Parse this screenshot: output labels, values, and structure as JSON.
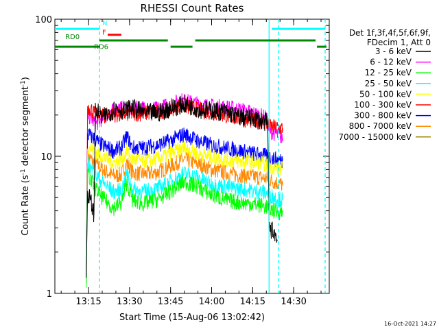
{
  "chart_data": {
    "type": "line",
    "title": "RHESSI Count Rates",
    "xlabel": "Start Time (15-Aug-06 13:02:42)",
    "ylabel": "Count Rate (s",
    "ylabel_sup": "-1",
    "ylabel_mid": " detector segment",
    "ylabel_end": ")",
    "y_scale": "log",
    "ylim": [
      1,
      100
    ],
    "xlim": [
      "13:02:42",
      "14:43:00"
    ],
    "x_ticks": [
      "13:15",
      "13:30",
      "13:45",
      "14:00",
      "14:15",
      "14:30"
    ],
    "y_ticks": [
      "1",
      "10",
      "100"
    ],
    "legend_header": [
      "Det 1f,3f,4f,5f,6f,9f,",
      "FDecim 1, Att 0"
    ],
    "legend_placement": "right",
    "series": [
      {
        "name": "3 - 6 keV",
        "color": "#000000",
        "start": "13:14:10",
        "end": "14:24:00",
        "values": [
          [
            "13:14:10",
            1.3
          ],
          [
            "13:14:40",
            5.5
          ],
          [
            "13:16:00",
            4.5
          ],
          [
            "13:17:00",
            3.8
          ],
          [
            "13:17:30",
            22.0
          ],
          [
            "13:20:00",
            19.0
          ],
          [
            "13:23:00",
            21.0
          ],
          [
            "13:25:00",
            22.5
          ],
          [
            "13:28:00",
            21.5
          ],
          [
            "13:31:00",
            22.5
          ],
          [
            "13:35:00",
            21.0
          ],
          [
            "13:40:00",
            20.5
          ],
          [
            "13:44:00",
            22.0
          ],
          [
            "13:47:00",
            23.0
          ],
          [
            "13:50:00",
            24.0
          ],
          [
            "13:53:00",
            23.0
          ],
          [
            "13:56:00",
            22.0
          ],
          [
            "14:00:00",
            21.5
          ],
          [
            "14:05:00",
            21.0
          ],
          [
            "14:10:00",
            19.5
          ],
          [
            "14:15:00",
            19.0
          ],
          [
            "14:19:00",
            18.0
          ],
          [
            "14:20:30",
            17.5
          ],
          [
            "14:21:00",
            3.0
          ],
          [
            "14:23:00",
            2.8
          ],
          [
            "14:24:00",
            2.4
          ]
        ]
      },
      {
        "name": "6 - 12 keV",
        "color": "#ff00ff",
        "start": "13:14:10",
        "end": "14:26:00",
        "values": [
          [
            "13:14:10",
            1.3
          ],
          [
            "13:14:40",
            20.0
          ],
          [
            "13:16:00",
            19.0
          ],
          [
            "13:17:30",
            17.0
          ],
          [
            "13:20:00",
            19.0
          ],
          [
            "13:23:00",
            21.0
          ],
          [
            "13:26:00",
            22.5
          ],
          [
            "13:30:00",
            22.0
          ],
          [
            "13:35:00",
            22.5
          ],
          [
            "13:40:00",
            22.0
          ],
          [
            "13:45:00",
            24.0
          ],
          [
            "13:49:00",
            25.5
          ],
          [
            "13:53:00",
            24.5
          ],
          [
            "13:57:00",
            23.5
          ],
          [
            "14:02:00",
            23.0
          ],
          [
            "14:07:00",
            22.5
          ],
          [
            "14:12:00",
            21.5
          ],
          [
            "14:17:00",
            20.0
          ],
          [
            "14:20:00",
            19.0
          ],
          [
            "14:21:00",
            15.5
          ],
          [
            "14:25:00",
            14.0
          ],
          [
            "14:26:00",
            13.5
          ]
        ]
      },
      {
        "name": "12 - 25 keV",
        "color": "#00ff00",
        "start": "13:14:10",
        "end": "14:26:00",
        "values": [
          [
            "13:14:10",
            1.1
          ],
          [
            "13:14:40",
            7.5
          ],
          [
            "13:17:00",
            6.0
          ],
          [
            "13:20:00",
            5.0
          ],
          [
            "13:24:00",
            4.2
          ],
          [
            "13:27:00",
            4.5
          ],
          [
            "13:29:00",
            6.5
          ],
          [
            "13:31:00",
            4.8
          ],
          [
            "13:35:00",
            4.5
          ],
          [
            "13:40:00",
            4.8
          ],
          [
            "13:45:00",
            5.5
          ],
          [
            "13:50:00",
            6.5
          ],
          [
            "13:55:00",
            6.0
          ],
          [
            "14:00:00",
            5.2
          ],
          [
            "14:05:00",
            4.8
          ],
          [
            "14:10:00",
            4.6
          ],
          [
            "14:15:00",
            4.5
          ],
          [
            "14:20:00",
            4.3
          ],
          [
            "14:23:00",
            4.0
          ],
          [
            "14:26:00",
            3.9
          ]
        ]
      },
      {
        "name": "25 - 50 keV",
        "color": "#00ffff",
        "start": "13:14:10",
        "end": "14:26:00",
        "values": [
          [
            "13:14:10",
            1.2
          ],
          [
            "13:14:40",
            9.0
          ],
          [
            "13:17:00",
            7.5
          ],
          [
            "13:20:00",
            6.5
          ],
          [
            "13:24:00",
            5.5
          ],
          [
            "13:27:00",
            5.6
          ],
          [
            "13:29:00",
            7.5
          ],
          [
            "13:31:00",
            5.8
          ],
          [
            "13:35:00",
            5.5
          ],
          [
            "13:40:00",
            5.8
          ],
          [
            "13:45:00",
            6.5
          ],
          [
            "13:50:00",
            7.5
          ],
          [
            "13:55:00",
            7.0
          ],
          [
            "14:00:00",
            6.2
          ],
          [
            "14:05:00",
            6.0
          ],
          [
            "14:10:00",
            5.8
          ],
          [
            "14:15:00",
            5.6
          ],
          [
            "14:20:00",
            5.4
          ],
          [
            "14:23:00",
            5.0
          ],
          [
            "14:26:00",
            4.8
          ]
        ]
      },
      {
        "name": "50 - 100 keV",
        "color": "#ffff00",
        "start": "13:14:10",
        "end": "14:26:00",
        "values": [
          [
            "13:14:10",
            1.2
          ],
          [
            "13:14:40",
            12.0
          ],
          [
            "13:17:00",
            11.0
          ],
          [
            "13:20:00",
            10.0
          ],
          [
            "13:24:00",
            9.0
          ],
          [
            "13:27:00",
            9.3
          ],
          [
            "13:29:00",
            11.0
          ],
          [
            "13:31:00",
            9.5
          ],
          [
            "13:35:00",
            9.3
          ],
          [
            "13:40:00",
            9.5
          ],
          [
            "13:45:00",
            10.5
          ],
          [
            "13:50:00",
            11.5
          ],
          [
            "13:55:00",
            10.5
          ],
          [
            "14:00:00",
            9.8
          ],
          [
            "14:05:00",
            9.5
          ],
          [
            "14:10:00",
            9.2
          ],
          [
            "14:15:00",
            9.0
          ],
          [
            "14:20:00",
            8.8
          ],
          [
            "14:23:00",
            8.3
          ],
          [
            "14:26:00",
            8.0
          ]
        ]
      },
      {
        "name": "100 - 300 keV",
        "color": "#ff0000",
        "start": "13:14:10",
        "end": "14:26:00",
        "values": [
          [
            "13:14:10",
            1.2
          ],
          [
            "13:14:40",
            23.0
          ],
          [
            "13:16:00",
            22.0
          ],
          [
            "13:17:30",
            20.0
          ],
          [
            "13:20:00",
            19.5
          ],
          [
            "13:23:00",
            20.5
          ],
          [
            "13:26:00",
            20.0
          ],
          [
            "13:30:00",
            20.5
          ],
          [
            "13:35:00",
            20.5
          ],
          [
            "13:40:00",
            21.0
          ],
          [
            "13:45:00",
            22.0
          ],
          [
            "13:49:00",
            23.5
          ],
          [
            "13:53:00",
            22.5
          ],
          [
            "13:57:00",
            21.5
          ],
          [
            "14:02:00",
            20.5
          ],
          [
            "14:07:00",
            19.5
          ],
          [
            "14:12:00",
            18.5
          ],
          [
            "14:17:00",
            18.0
          ],
          [
            "14:20:00",
            17.5
          ],
          [
            "14:21:00",
            16.5
          ],
          [
            "14:25:00",
            16.0
          ],
          [
            "14:26:00",
            16.0
          ]
        ]
      },
      {
        "name": "300 - 800 keV",
        "color": "#0000ff",
        "start": "13:14:10",
        "end": "14:26:00",
        "values": [
          [
            "13:14:10",
            1.3
          ],
          [
            "13:14:40",
            14.5
          ],
          [
            "13:17:00",
            13.5
          ],
          [
            "13:20:00",
            12.0
          ],
          [
            "13:24:00",
            11.0
          ],
          [
            "13:27:00",
            11.5
          ],
          [
            "13:29:00",
            14.0
          ],
          [
            "13:31:00",
            11.5
          ],
          [
            "13:35:00",
            11.5
          ],
          [
            "13:40:00",
            12.0
          ],
          [
            "13:45:00",
            13.0
          ],
          [
            "13:50:00",
            14.5
          ],
          [
            "13:55:00",
            13.0
          ],
          [
            "14:00:00",
            12.0
          ],
          [
            "14:05:00",
            11.5
          ],
          [
            "14:10:00",
            11.0
          ],
          [
            "14:15:00",
            10.5
          ],
          [
            "14:20:00",
            10.0
          ],
          [
            "14:23:00",
            9.5
          ],
          [
            "14:26:00",
            9.3
          ]
        ]
      },
      {
        "name": "800 - 7000 keV",
        "color": "#ff8800",
        "start": "13:14:10",
        "end": "14:26:00",
        "values": [
          [
            "13:14:10",
            1.2
          ],
          [
            "13:14:40",
            10.0
          ],
          [
            "13:17:00",
            9.0
          ],
          [
            "13:20:00",
            8.0
          ],
          [
            "13:24:00",
            7.2
          ],
          [
            "13:27:00",
            7.3
          ],
          [
            "13:29:00",
            9.0
          ],
          [
            "13:31:00",
            7.6
          ],
          [
            "13:35:00",
            7.4
          ],
          [
            "13:40:00",
            7.6
          ],
          [
            "13:45:00",
            8.5
          ],
          [
            "13:50:00",
            9.5
          ],
          [
            "13:55:00",
            8.8
          ],
          [
            "14:00:00",
            8.0
          ],
          [
            "14:05:00",
            7.6
          ],
          [
            "14:10:00",
            7.3
          ],
          [
            "14:15:00",
            7.1
          ],
          [
            "14:20:00",
            6.9
          ],
          [
            "14:23:00",
            6.5
          ],
          [
            "14:26:00",
            6.2
          ]
        ]
      },
      {
        "name": "7000 - 15000 keV",
        "color": "#998800",
        "start": "13:14:10",
        "end": "14:26:00",
        "values": []
      }
    ],
    "attenuator_bars": [
      {
        "label": "",
        "color": "#00ffff",
        "start": "13:02:42",
        "end": "13:19:00",
        "y": 85
      },
      {
        "label": "",
        "color": "#00ffff",
        "start": "14:22:00",
        "end": "14:41:30",
        "y": 85
      },
      {
        "label": "N",
        "color": "#00ffff",
        "start": "13:19:00",
        "end": "13:19:00",
        "y": 85
      },
      {
        "label": "F",
        "color": "#ff0000",
        "start": "13:22:00",
        "end": "13:27:00",
        "y": 77
      },
      {
        "label": "RD0",
        "color": "#008800",
        "start": "13:02:42",
        "end": "13:44:30",
        "y": 69
      },
      {
        "label": "RD6",
        "color": "#008800",
        "start": "13:02:42",
        "end": "14:39:00",
        "y": 63
      }
    ],
    "green_bars": [
      {
        "start": "13:19:00",
        "end": "13:44:00",
        "y": 70
      },
      {
        "start": "13:45:00",
        "end": "13:53:00",
        "y": 63
      },
      {
        "start": "13:54:00",
        "end": "14:38:00",
        "y": 70
      },
      {
        "start": "14:38:30",
        "end": "14:42:00",
        "y": 63
      },
      {
        "start": "13:02:42",
        "end": "13:19:00",
        "y": 63
      }
    ],
    "vlines": [
      {
        "x": "13:19:00",
        "color": "#00ffff",
        "style": "dashed"
      },
      {
        "x": "14:21:00",
        "color": "#00ffff",
        "style": "solid"
      },
      {
        "x": "14:24:30",
        "color": "#00ffff",
        "style": "dashed"
      },
      {
        "x": "14:41:30",
        "color": "#00ffff",
        "style": "dashed"
      }
    ],
    "timestamp": "16-Oct-2021 14:27"
  }
}
